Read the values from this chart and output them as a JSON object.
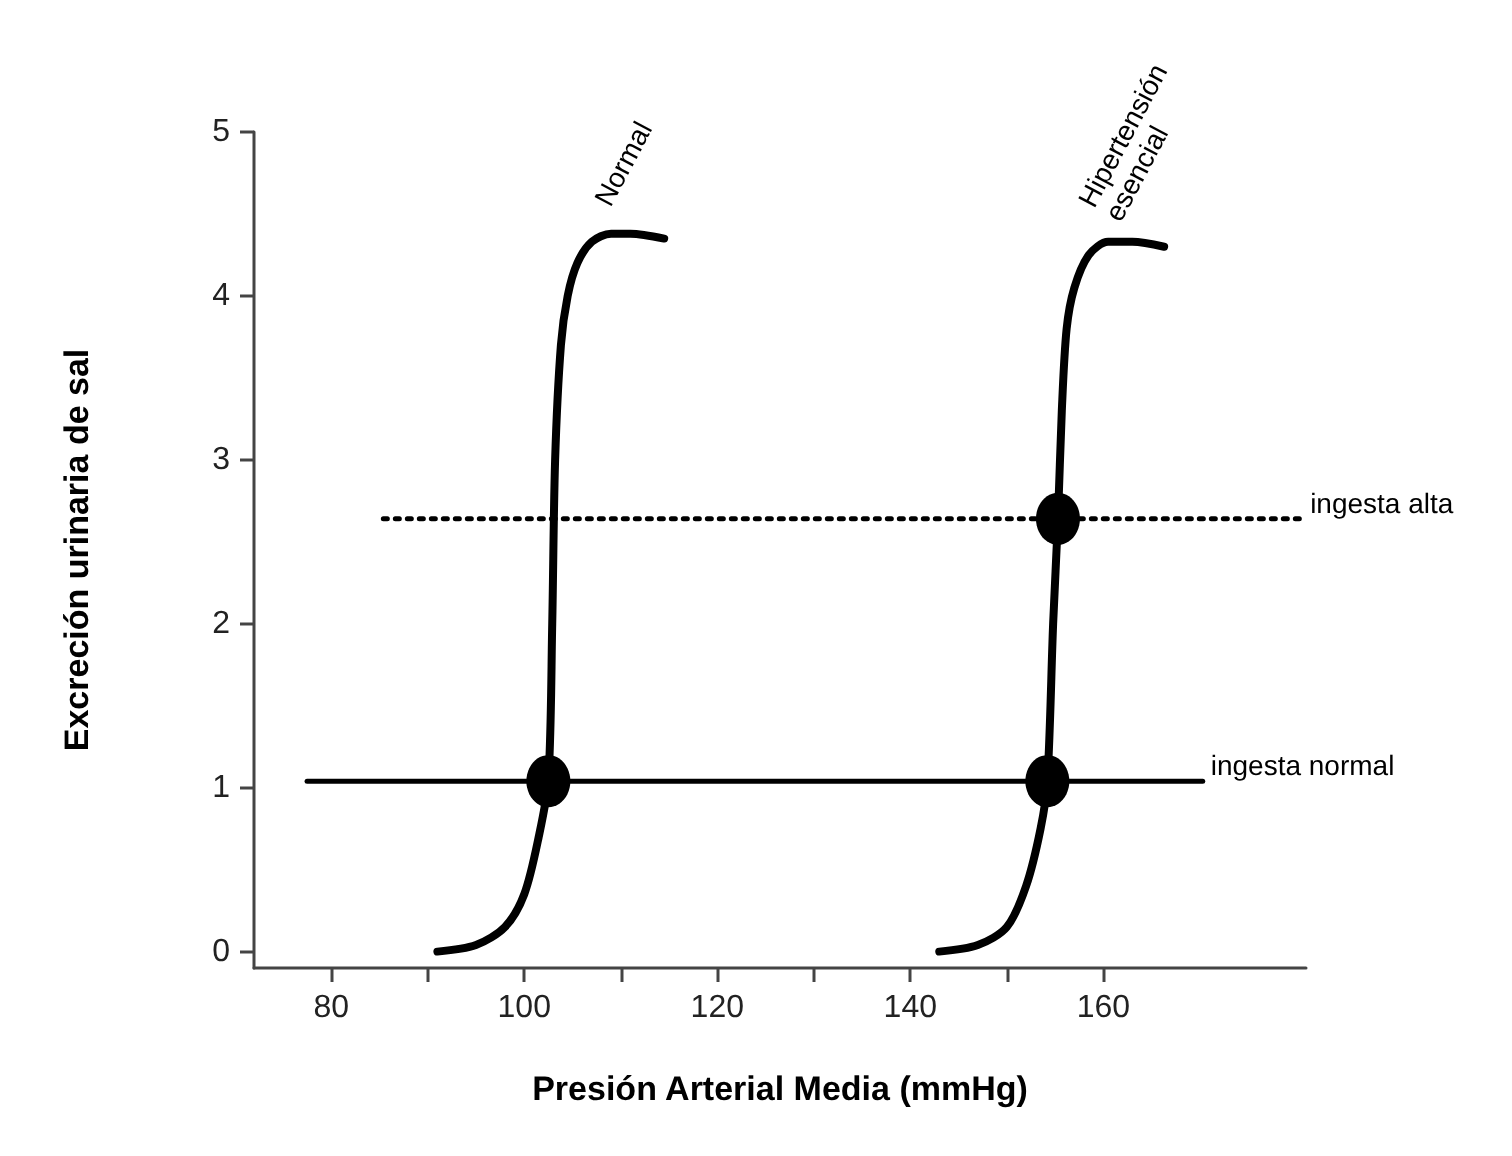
{
  "chart_data": {
    "type": "line",
    "xlabel": "Presión Arterial Media (mmHg)",
    "ylabel": "Excreción urinaria de sal",
    "xlim": [
      72,
      181
    ],
    "ylim": [
      -0.1,
      5
    ],
    "xticks": [
      80,
      {
        "value": 90,
        "label": null
      },
      100,
      {
        "value": 110,
        "label": null
      },
      120,
      {
        "value": 130,
        "label": null
      },
      140,
      {
        "value": 150,
        "label": null
      },
      160
    ],
    "yticks": [
      0,
      1,
      2,
      3,
      4,
      5
    ],
    "grid": false,
    "legend": false,
    "series": [
      {
        "name": "Normal",
        "color": "#000000",
        "x": [
          91,
          95,
          98,
          100,
          101.5,
          102.5,
          102.9,
          103.2,
          103.8,
          104.5,
          105.5,
          107,
          109,
          111,
          114.5
        ],
        "values": [
          0.0,
          0.04,
          0.15,
          0.35,
          0.7,
          1.05,
          2.0,
          3.0,
          3.7,
          4.0,
          4.2,
          4.33,
          4.38,
          4.38,
          4.35
        ]
      },
      {
        "name": "Hipertensión esencial",
        "color": "#000000",
        "x": [
          143,
          147,
          150,
          152,
          153.5,
          154.2,
          154.8,
          155.3,
          155.7,
          156.2,
          157,
          158.5,
          160.5,
          163,
          166.3
        ],
        "values": [
          0.0,
          0.04,
          0.15,
          0.4,
          0.75,
          1.04,
          2.0,
          2.64,
          3.3,
          3.8,
          4.05,
          4.25,
          4.33,
          4.33,
          4.3
        ]
      },
      {
        "name": "ingesta normal",
        "color": "#000000",
        "line_style": "solid",
        "x": [
          77.5,
          170.3
        ],
        "values": [
          1.04,
          1.04
        ]
      },
      {
        "name": "ingesta alta",
        "color": "#000000",
        "line_style": "dotted",
        "x": [
          85.4,
          180.6
        ],
        "values": [
          2.64,
          2.64
        ]
      },
      {
        "type": "scatter",
        "marker": "circle",
        "color": "#000000",
        "x": [
          102.5,
          154.2,
          155.3
        ],
        "values": [
          1.04,
          1.04,
          2.64
        ]
      }
    ]
  }
}
